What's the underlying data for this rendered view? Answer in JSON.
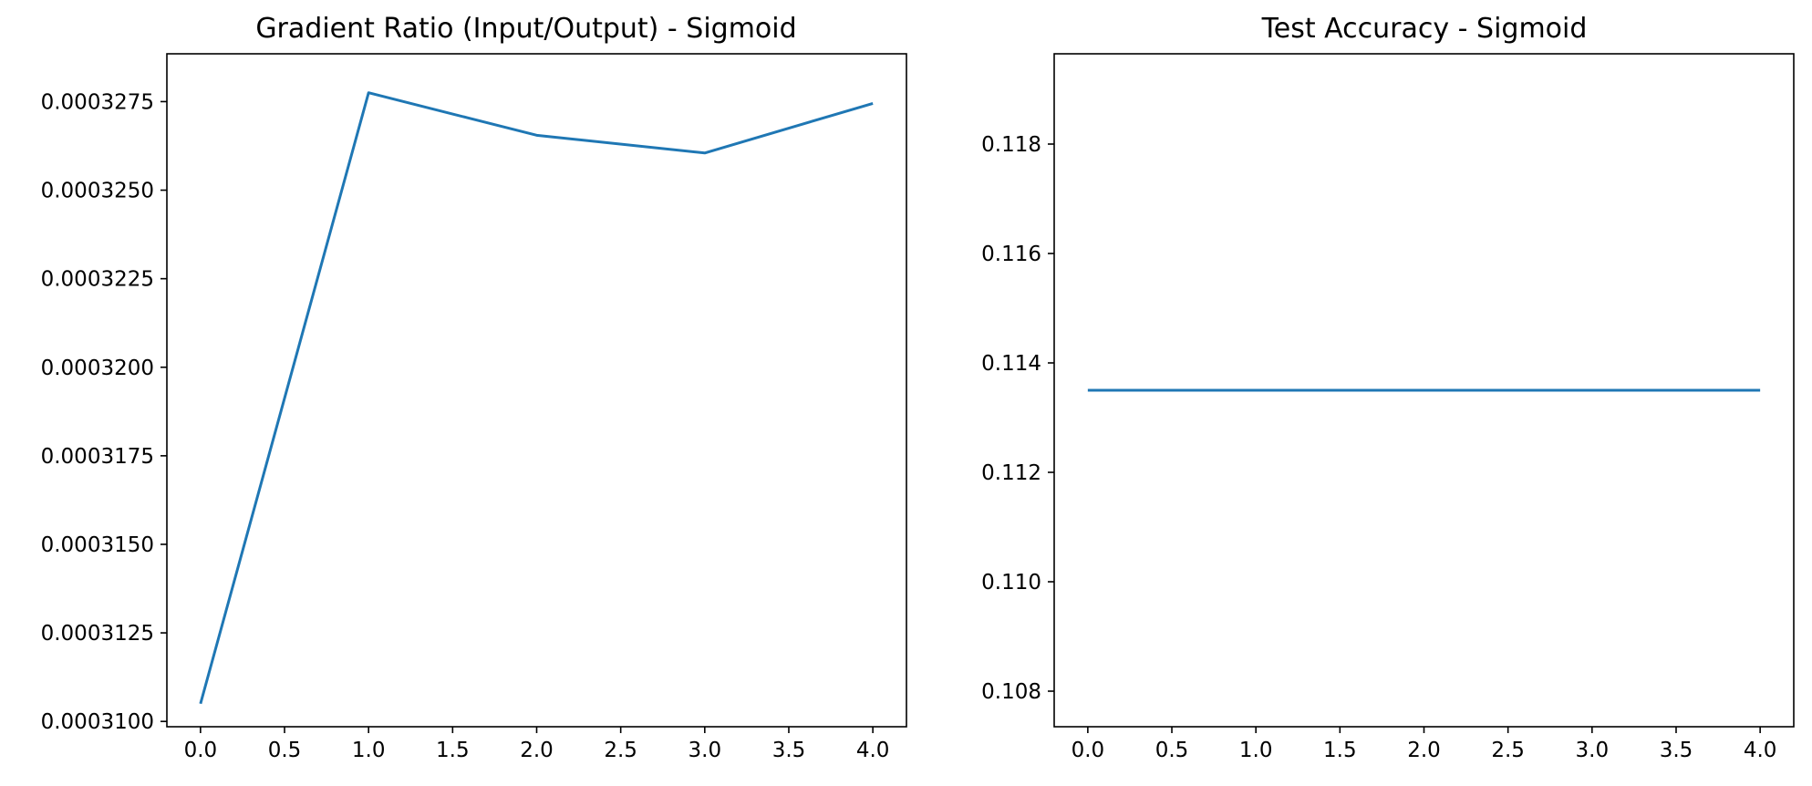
{
  "chart_data": [
    {
      "type": "line",
      "title": "Gradient Ratio (Input/Output) - Sigmoid",
      "xlabel": "",
      "ylabel": "",
      "x": [
        0,
        1,
        2,
        3,
        4
      ],
      "series": [
        {
          "values": [
            0.0003105,
            0.00032775,
            0.00032655,
            0.00032605,
            0.00032745
          ],
          "color": "#1f77b4"
        }
      ],
      "xlim": [
        -0.2,
        4.2
      ],
      "ylim": [
        0.00030985,
        0.00032885
      ],
      "xticks": [
        0,
        0.5,
        1,
        1.5,
        2,
        2.5,
        3,
        3.5,
        4
      ],
      "xtick_labels": [
        "0.0",
        "0.5",
        "1.0",
        "1.5",
        "2.0",
        "2.5",
        "3.0",
        "3.5",
        "4.0"
      ],
      "yticks": [
        0.00031,
        0.0003125,
        0.000315,
        0.0003175,
        0.00032,
        0.0003225,
        0.000325,
        0.0003275
      ],
      "ytick_labels": [
        "0.0003100",
        "0.0003125",
        "0.0003150",
        "0.0003175",
        "0.0003200",
        "0.0003225",
        "0.0003250",
        "0.0003275"
      ],
      "grid": false,
      "legend": "none"
    },
    {
      "type": "line",
      "title": "Test Accuracy - Sigmoid",
      "xlabel": "",
      "ylabel": "",
      "x": [
        0,
        1,
        2,
        3,
        4
      ],
      "series": [
        {
          "values": [
            0.1135,
            0.1135,
            0.1135,
            0.1135,
            0.1135
          ],
          "color": "#1f77b4"
        }
      ],
      "xlim": [
        -0.2,
        4.2
      ],
      "ylim": [
        0.10735,
        0.11965
      ],
      "xticks": [
        0,
        0.5,
        1,
        1.5,
        2,
        2.5,
        3,
        3.5,
        4
      ],
      "xtick_labels": [
        "0.0",
        "0.5",
        "1.0",
        "1.5",
        "2.0",
        "2.5",
        "3.0",
        "3.5",
        "4.0"
      ],
      "yticks": [
        0.108,
        0.11,
        0.112,
        0.114,
        0.116,
        0.118
      ],
      "ytick_labels": [
        "0.108",
        "0.110",
        "0.112",
        "0.114",
        "0.116",
        "0.118"
      ],
      "grid": false,
      "legend": "none"
    }
  ]
}
